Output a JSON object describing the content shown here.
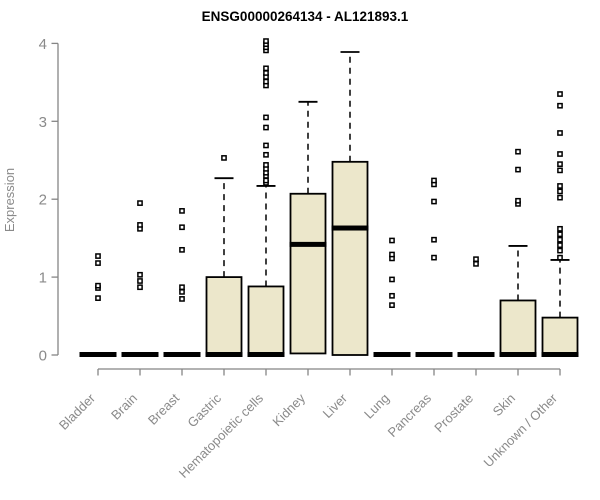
{
  "chart_data": {
    "type": "boxplot",
    "title": "ENSG00000264134 - AL121893.1",
    "ylabel": "Expression",
    "xlabel": "",
    "ylim": [
      0,
      4
    ],
    "yticks": [
      0,
      1,
      2,
      3,
      4
    ],
    "grid": false,
    "legend": false,
    "colors": {
      "box_fill": "#ECE7CB",
      "box_stroke": "#000000",
      "median": "#000000",
      "axis": "#858585",
      "tick_label": "#8A8A8A",
      "title": "#000000",
      "background": "#FFFFFF"
    },
    "categories": [
      "Bladder",
      "Brain",
      "Breast",
      "Gastric",
      "Hematopoietic cells",
      "Kidney",
      "Liver",
      "Lung",
      "Pancreas",
      "Prostate",
      "Skin",
      "Unknown / Other"
    ],
    "series": [
      {
        "label": "Bladder",
        "q1": 0,
        "median": 0,
        "q3": 0,
        "whisker_low": 0,
        "whisker_high": 0,
        "outliers": [
          0.73,
          0.86,
          0.89,
          1.18,
          1.27
        ]
      },
      {
        "label": "Brain",
        "q1": 0,
        "median": 0,
        "q3": 0,
        "whisker_low": 0,
        "whisker_high": 0,
        "outliers": [
          0.87,
          0.95,
          1.03,
          1.62,
          1.67,
          1.95
        ]
      },
      {
        "label": "Breast",
        "q1": 0,
        "median": 0,
        "q3": 0,
        "whisker_low": 0,
        "whisker_high": 0,
        "outliers": [
          0.72,
          0.81,
          0.87,
          1.35,
          1.64,
          1.85
        ]
      },
      {
        "label": "Gastric",
        "q1": 0,
        "median": 0,
        "q3": 1.0,
        "whisker_low": 0,
        "whisker_high": 2.27,
        "outliers": [
          2.53
        ]
      },
      {
        "label": "Hematopoietic cells",
        "q1": 0,
        "median": 0,
        "q3": 0.88,
        "whisker_low": 0,
        "whisker_high": 2.17,
        "outliers": [
          2.21,
          2.24,
          2.3,
          2.34,
          2.39,
          2.44,
          2.57,
          2.69,
          2.92,
          3.05,
          3.46,
          3.51,
          3.57,
          3.62,
          3.68,
          3.91,
          3.95,
          3.99,
          4.03
        ]
      },
      {
        "label": "Kidney",
        "q1": 0.02,
        "median": 1.42,
        "q3": 2.07,
        "whisker_low": 0.02,
        "whisker_high": 3.25,
        "outliers": []
      },
      {
        "label": "Liver",
        "q1": 0,
        "median": 1.63,
        "q3": 2.48,
        "whisker_low": 0,
        "whisker_high": 3.89,
        "outliers": []
      },
      {
        "label": "Lung",
        "q1": 0,
        "median": 0,
        "q3": 0,
        "whisker_low": 0,
        "whisker_high": 0,
        "outliers": [
          0.64,
          0.76,
          0.97,
          1.24,
          1.29,
          1.47
        ]
      },
      {
        "label": "Pancreas",
        "q1": 0,
        "median": 0,
        "q3": 0,
        "whisker_low": 0,
        "whisker_high": 0,
        "outliers": [
          1.25,
          1.48,
          1.97,
          2.19,
          2.24
        ]
      },
      {
        "label": "Prostate",
        "q1": 0,
        "median": 0,
        "q3": 0,
        "whisker_low": 0,
        "whisker_high": 0,
        "outliers": [
          1.17,
          1.23
        ]
      },
      {
        "label": "Skin",
        "q1": 0,
        "median": 0,
        "q3": 0.7,
        "whisker_low": 0,
        "whisker_high": 1.4,
        "outliers": [
          1.94,
          1.98,
          2.38,
          2.61
        ]
      },
      {
        "label": "Unknown / Other",
        "q1": 0,
        "median": 0,
        "q3": 0.48,
        "whisker_low": 0,
        "whisker_high": 1.22,
        "outliers": [
          1.25,
          1.34,
          1.41,
          1.48,
          1.55,
          1.62,
          2.02,
          2.1,
          2.17,
          2.37,
          2.45,
          2.58,
          2.85,
          3.2,
          3.35
        ]
      }
    ]
  }
}
